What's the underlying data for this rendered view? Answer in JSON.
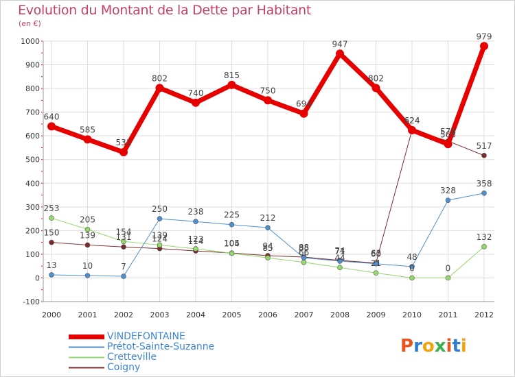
{
  "header": {
    "title": "Evolution du Montant de la Dette par Habitant",
    "unit": "(en €)"
  },
  "logo": {
    "text": "Proxiti",
    "letters": [
      "P",
      "r",
      "o",
      "x",
      "i",
      "t",
      "i"
    ],
    "colors": [
      "#e8551c",
      "#2e7fd1",
      "#f2a20c",
      "#3bb14a",
      "#e8551c",
      "#2e7fd1",
      "#f2a20c"
    ]
  },
  "chart_data": {
    "type": "line",
    "title": "Evolution du Montant de la Dette par Habitant",
    "ylabel": "(en €)",
    "x": [
      "2000",
      "2001",
      "2002",
      "2003",
      "2004",
      "2005",
      "2006",
      "2007",
      "2008",
      "2009",
      "2010",
      "2011",
      "2012"
    ],
    "ylim": [
      -100,
      1000
    ],
    "yticks": [
      "-100",
      "0",
      "100",
      "200",
      "300",
      "400",
      "500",
      "600",
      "700",
      "800",
      "900",
      "1000"
    ],
    "grid": true,
    "legend_position": "bottom-left",
    "series": [
      {
        "name": "VINDEFONTAINE",
        "color": "#e60000",
        "width": 7,
        "values": [
          640,
          585,
          531,
          802,
          740,
          815,
          750,
          694,
          947,
          802,
          624,
          565,
          979
        ],
        "labels": [
          "640",
          "585",
          "531",
          "802",
          "740",
          "815",
          "750",
          "694",
          "947",
          "802",
          "624",
          "565",
          "979"
        ]
      },
      {
        "name": "Prétot-Sainte-Suzanne",
        "color": "#4f8fce",
        "width": 1,
        "values": [
          13,
          10,
          7,
          250,
          238,
          225,
          212,
          85,
          71,
          60,
          48,
          328,
          358
        ],
        "labels": [
          "13",
          "10",
          "7",
          "250",
          "238",
          "225",
          "212",
          "85",
          "71",
          "60",
          "48",
          "328",
          "358"
        ]
      },
      {
        "name": "Cretteville",
        "color": "#93d86b",
        "width": 1,
        "values": [
          253,
          205,
          154,
          139,
          123,
          104,
          85,
          66,
          44,
          21,
          0,
          0,
          132
        ],
        "labels": [
          "253",
          "205",
          "154",
          "139",
          "123",
          "104",
          "85",
          "66",
          "44",
          "21",
          "0",
          "0",
          "132"
        ]
      },
      {
        "name": "Coigny",
        "color": "#7a2a2a",
        "width": 1,
        "values": [
          150,
          139,
          131,
          124,
          114,
          105,
          94,
          88,
          74,
          63,
          624,
          578,
          517
        ],
        "labels": [
          "150",
          "139",
          "131",
          "124",
          "114",
          "105",
          "94",
          "88",
          "74",
          "63",
          "624",
          "578",
          "517"
        ]
      }
    ]
  }
}
